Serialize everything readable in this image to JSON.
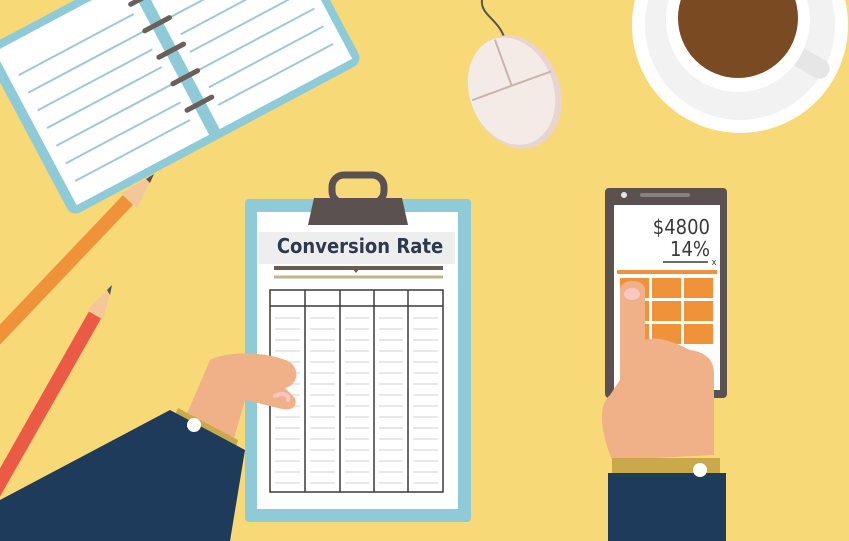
{
  "clipboard": {
    "title": "Conversion Rate"
  },
  "phone": {
    "amount": "$4800",
    "rate": "14%",
    "operator": "x"
  }
}
